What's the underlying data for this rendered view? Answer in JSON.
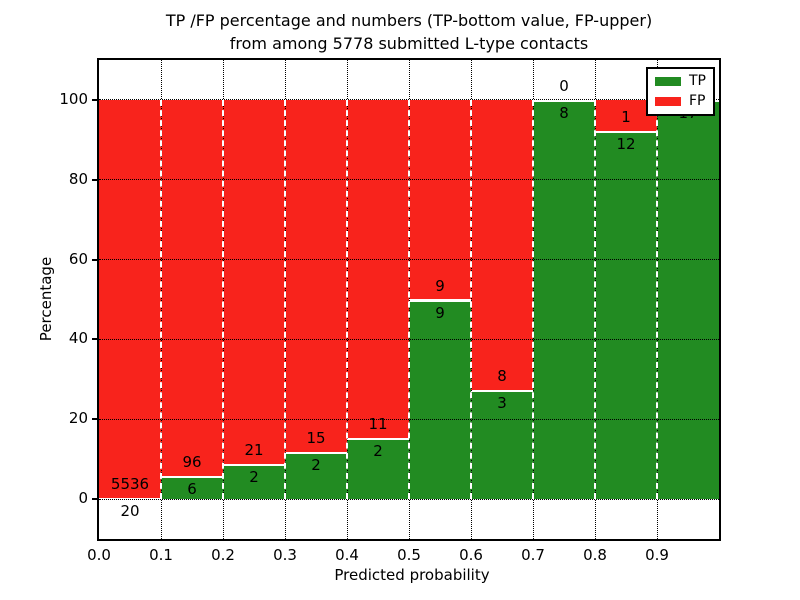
{
  "figure": {
    "title_line1": "TP /FP percentage and numbers (TP-bottom value, FP-upper)",
    "title_line2": "from among 5778 submitted L-type contacts",
    "xlabel": "Predicted probability",
    "ylabel": "Percentage"
  },
  "legend": {
    "position": "upper right",
    "entries": [
      {
        "label": "TP",
        "color": "#228b22"
      },
      {
        "label": "FP",
        "color": "#f8231c"
      }
    ]
  },
  "chart_data": {
    "type": "bar",
    "stacked": true,
    "title": "TP /FP percentage and numbers (TP-bottom value, FP-upper) from among 5778 submitted L-type contacts",
    "xlabel": "Predicted probability",
    "ylabel": "Percentage",
    "total_contacts": 5778,
    "note": "Each bar is normalized to 100%; TP segment on bottom, FP on top; counts annotated at the TP/FP boundary (FP above, TP below)",
    "bin_edges": [
      0.0,
      0.1,
      0.2,
      0.3,
      0.4,
      0.5,
      0.6,
      0.7,
      0.8,
      0.9,
      1.0
    ],
    "categories": [
      "0.0-0.1",
      "0.1-0.2",
      "0.2-0.3",
      "0.3-0.4",
      "0.4-0.5",
      "0.5-0.6",
      "0.6-0.7",
      "0.7-0.8",
      "0.8-0.9",
      "0.9-1.0"
    ],
    "series": [
      {
        "name": "TP",
        "color": "#228b22",
        "values": [
          20,
          6,
          2,
          2,
          2,
          9,
          3,
          8,
          12,
          17
        ]
      },
      {
        "name": "FP",
        "color": "#f8231c",
        "values": [
          5536,
          96,
          21,
          15,
          11,
          9,
          8,
          0,
          1,
          0
        ]
      }
    ],
    "tp_percent_by_bin": [
      0.36,
      5.88,
      8.7,
      11.76,
      15.38,
      50.0,
      27.27,
      100.0,
      92.31,
      100.0
    ],
    "xticks": [
      "0.0",
      "0.1",
      "0.2",
      "0.3",
      "0.4",
      "0.5",
      "0.6",
      "0.7",
      "0.8",
      "0.9"
    ],
    "yticks": [
      0,
      20,
      40,
      60,
      80,
      100
    ],
    "ytick_labels": [
      "0",
      "20",
      "40",
      "60",
      "80",
      "100"
    ],
    "ylim": [
      -10,
      110
    ],
    "grid": "dotted",
    "legend_position": "upper right"
  }
}
